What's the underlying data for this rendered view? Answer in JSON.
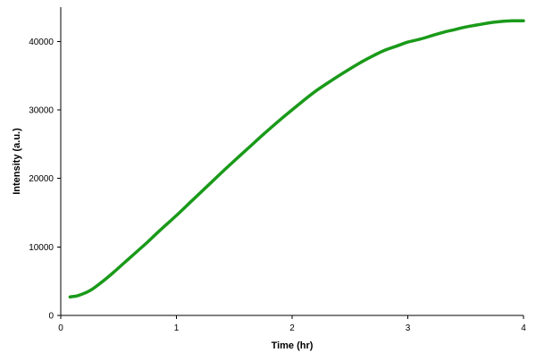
{
  "chart_data": {
    "type": "line",
    "title": "",
    "xlabel": "Time (hr)",
    "ylabel": "Intensity (a.u.)",
    "xlim": [
      0,
      4
    ],
    "ylim": [
      0,
      45000
    ],
    "xticks": [
      0,
      1,
      2,
      3,
      4
    ],
    "yticks": [
      0,
      10000,
      20000,
      30000,
      40000
    ],
    "grid": false,
    "legend": "none",
    "series": [
      {
        "color": "#1a9a1a",
        "x": [
          0.08,
          0.15,
          0.25,
          0.35,
          0.45,
          0.55,
          0.65,
          0.75,
          0.85,
          1.0,
          1.15,
          1.3,
          1.45,
          1.6,
          1.75,
          1.9,
          2.05,
          2.2,
          2.35,
          2.5,
          2.6,
          2.7,
          2.8,
          2.9,
          3.0,
          3.1,
          3.2,
          3.3,
          3.4,
          3.5,
          3.6,
          3.7,
          3.8,
          3.9,
          4.0
        ],
        "y": [
          2700,
          2900,
          3600,
          4800,
          6200,
          7700,
          9200,
          10700,
          12300,
          14600,
          17000,
          19400,
          21800,
          24100,
          26400,
          28600,
          30700,
          32700,
          34400,
          36000,
          37000,
          37900,
          38700,
          39300,
          39900,
          40300,
          40800,
          41300,
          41700,
          42100,
          42400,
          42700,
          42900,
          43000,
          43000
        ]
      }
    ]
  }
}
